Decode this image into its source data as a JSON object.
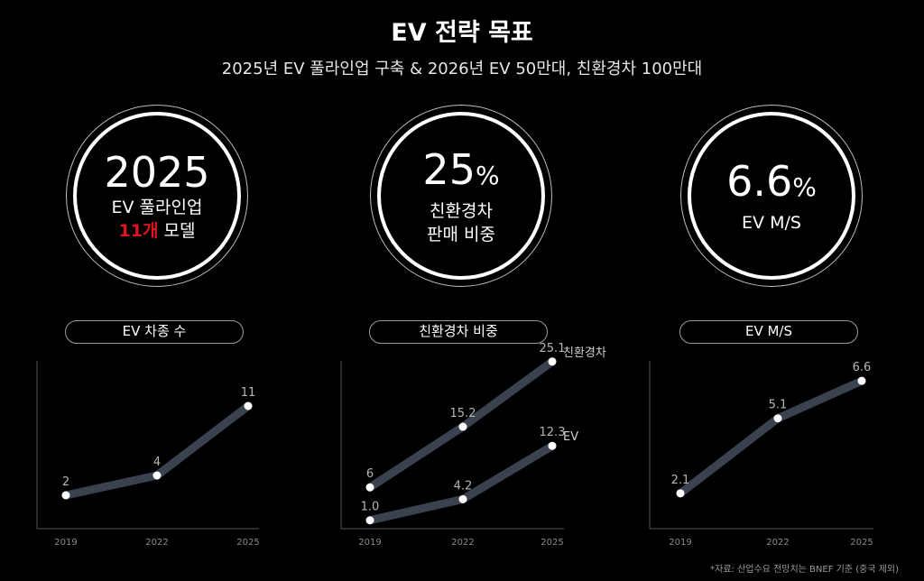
{
  "title": "EV 전략 목표",
  "subtitle": "2025년 EV 풀라인업 구축 & 2026년 EV 50만대, 친환경차 100만대",
  "kpis": [
    {
      "big": "2025",
      "suffix": "",
      "line1": "EV 풀라인업",
      "line2_red": "11개",
      "line2": " 모델"
    },
    {
      "big": "25",
      "suffix": "%",
      "line1": "친환경차",
      "line2": "판매 비중"
    },
    {
      "big": "6.6",
      "suffix": "%",
      "line1": "EV M/S"
    }
  ],
  "pills": [
    "EV 차종 수",
    "친환경차 비중",
    "EV M/S"
  ],
  "footnote": "*자료: 산업수요 전망치는 BNEF 기준 (중국 제외)",
  "colors": {
    "line": "#3a4250",
    "point": "#ffffff",
    "accent": "#e0141e",
    "axis": "#555555"
  },
  "chart_data": [
    {
      "type": "line",
      "title": "EV 차종 수",
      "categories": [
        "2019",
        "2022",
        "2025"
      ],
      "series": [
        {
          "name": "",
          "values": [
            2,
            4,
            11
          ],
          "labels": [
            "2",
            "4",
            "11"
          ]
        }
      ]
    },
    {
      "type": "line",
      "title": "친환경차 비중",
      "categories": [
        "2019",
        "2022",
        "2025"
      ],
      "series": [
        {
          "name": "친환경차",
          "values": [
            6,
            15.2,
            25.1
          ],
          "labels": [
            "6",
            "15.2",
            "25.1"
          ]
        },
        {
          "name": "EV",
          "values": [
            1.0,
            4.2,
            12.3
          ],
          "labels": [
            "1.0",
            "4.2",
            "12.3"
          ]
        }
      ]
    },
    {
      "type": "line",
      "title": "EV M/S",
      "categories": [
        "2019",
        "2022",
        "2025"
      ],
      "series": [
        {
          "name": "",
          "values": [
            2.1,
            5.1,
            6.6
          ],
          "labels": [
            "2.1",
            "5.1",
            "6.6"
          ]
        }
      ]
    }
  ]
}
